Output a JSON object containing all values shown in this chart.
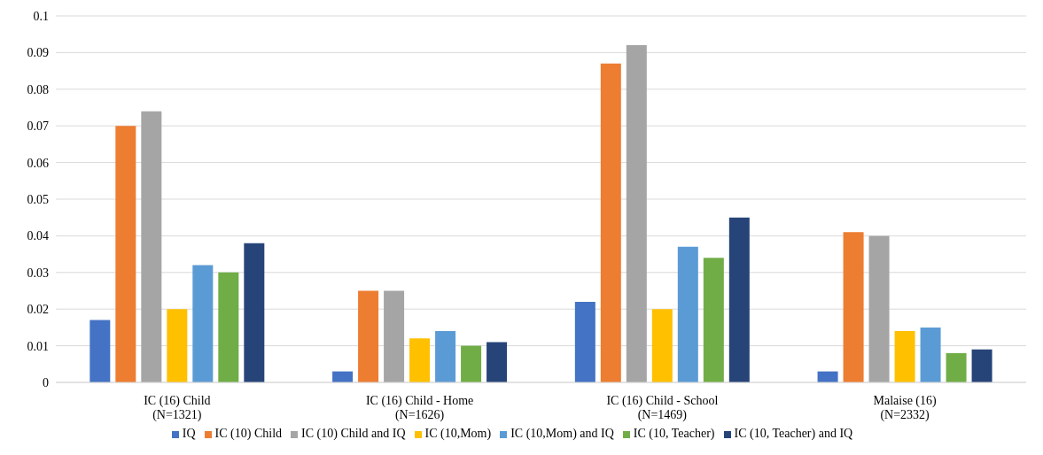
{
  "chart_data": {
    "type": "bar",
    "categories": [
      "IC (16) Child\n(N=1321)",
      "IC (16) Child - Home\n(N=1626)",
      "IC (16) Child - School\n(N=1469)",
      "Malaise (16)\n(N=2332)"
    ],
    "series": [
      {
        "name": "IQ",
        "color": "#4472c4",
        "values": [
          0.017,
          0.003,
          0.022,
          0.003
        ]
      },
      {
        "name": "IC (10) Child",
        "color": "#ed7d31",
        "values": [
          0.07,
          0.025,
          0.087,
          0.041
        ]
      },
      {
        "name": "IC (10) Child and IQ",
        "color": "#a5a5a5",
        "values": [
          0.074,
          0.025,
          0.092,
          0.04
        ]
      },
      {
        "name": "IC (10,Mom)",
        "color": "#ffc000",
        "values": [
          0.02,
          0.012,
          0.02,
          0.014
        ]
      },
      {
        "name": "IC (10,Mom) and IQ",
        "color": "#5b9bd5",
        "values": [
          0.032,
          0.014,
          0.037,
          0.015
        ]
      },
      {
        "name": "IC (10, Teacher)",
        "color": "#70ad47",
        "values": [
          0.03,
          0.01,
          0.034,
          0.008
        ]
      },
      {
        "name": "IC (10, Teacher) and IQ",
        "color": "#264478",
        "values": [
          0.038,
          0.011,
          0.045,
          0.009
        ]
      }
    ],
    "ylim": [
      0,
      0.1
    ],
    "yticks": [
      0,
      0.01,
      0.02,
      0.03,
      0.04,
      0.05,
      0.06,
      0.07,
      0.08,
      0.09,
      0.1
    ],
    "grid": "y",
    "legend": "bottom"
  }
}
